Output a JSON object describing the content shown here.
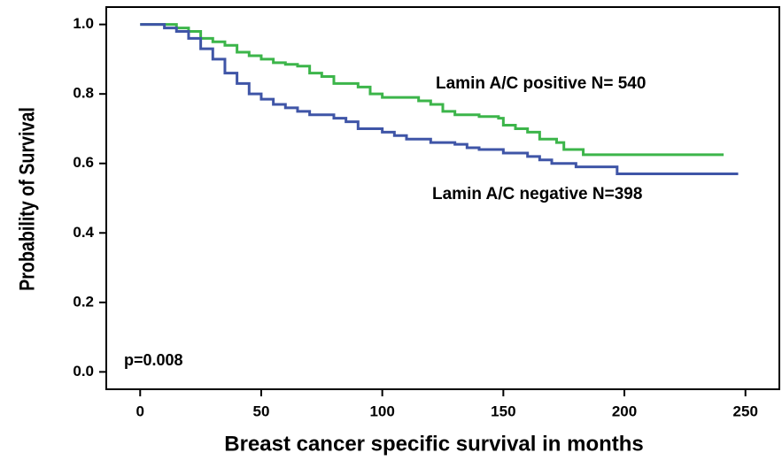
{
  "chart_data": {
    "type": "line",
    "step": "post",
    "x_label": "Breast cancer specific survival in months",
    "y_label": "Probability of Survival",
    "annotation": "p=0.008",
    "xlim": [
      -14,
      264
    ],
    "ylim": [
      -0.05,
      1.05
    ],
    "xticks": [
      0,
      50,
      100,
      150,
      200,
      250
    ],
    "yticks": [
      {
        "value": 0,
        "label": "0.0"
      },
      0.2,
      0.4,
      0.6,
      0.8,
      {
        "value": 1,
        "label": "1.0"
      }
    ],
    "grid": false,
    "series": [
      {
        "name": "Lamin A/C positive N= 540",
        "color": "#3cb54a",
        "x": [
          0,
          10,
          15,
          20,
          25,
          30,
          35,
          40,
          45,
          50,
          55,
          60,
          65,
          70,
          75,
          80,
          90,
          95,
          100,
          110,
          115,
          120,
          125,
          130,
          140,
          148,
          150,
          155,
          160,
          165,
          172,
          175,
          183,
          241
        ],
        "values": [
          1.0,
          1.0,
          0.99,
          0.98,
          0.96,
          0.95,
          0.94,
          0.92,
          0.91,
          0.9,
          0.89,
          0.885,
          0.88,
          0.86,
          0.85,
          0.83,
          0.82,
          0.8,
          0.79,
          0.79,
          0.78,
          0.77,
          0.75,
          0.74,
          0.735,
          0.73,
          0.71,
          0.7,
          0.69,
          0.67,
          0.66,
          0.64,
          0.625,
          0.625
        ]
      },
      {
        "name": "Lamin A/C negative N=398",
        "color": "#3f55a7",
        "x": [
          0,
          5,
          10,
          15,
          20,
          25,
          30,
          35,
          40,
          45,
          50,
          55,
          60,
          65,
          70,
          80,
          85,
          90,
          100,
          105,
          110,
          120,
          130,
          135,
          140,
          150,
          160,
          165,
          170,
          180,
          197,
          247
        ],
        "values": [
          1.0,
          1.0,
          0.99,
          0.98,
          0.96,
          0.93,
          0.9,
          0.86,
          0.83,
          0.8,
          0.785,
          0.77,
          0.76,
          0.75,
          0.74,
          0.73,
          0.72,
          0.7,
          0.69,
          0.68,
          0.67,
          0.66,
          0.655,
          0.645,
          0.64,
          0.63,
          0.62,
          0.61,
          0.6,
          0.59,
          0.57,
          0.57
        ]
      }
    ]
  }
}
